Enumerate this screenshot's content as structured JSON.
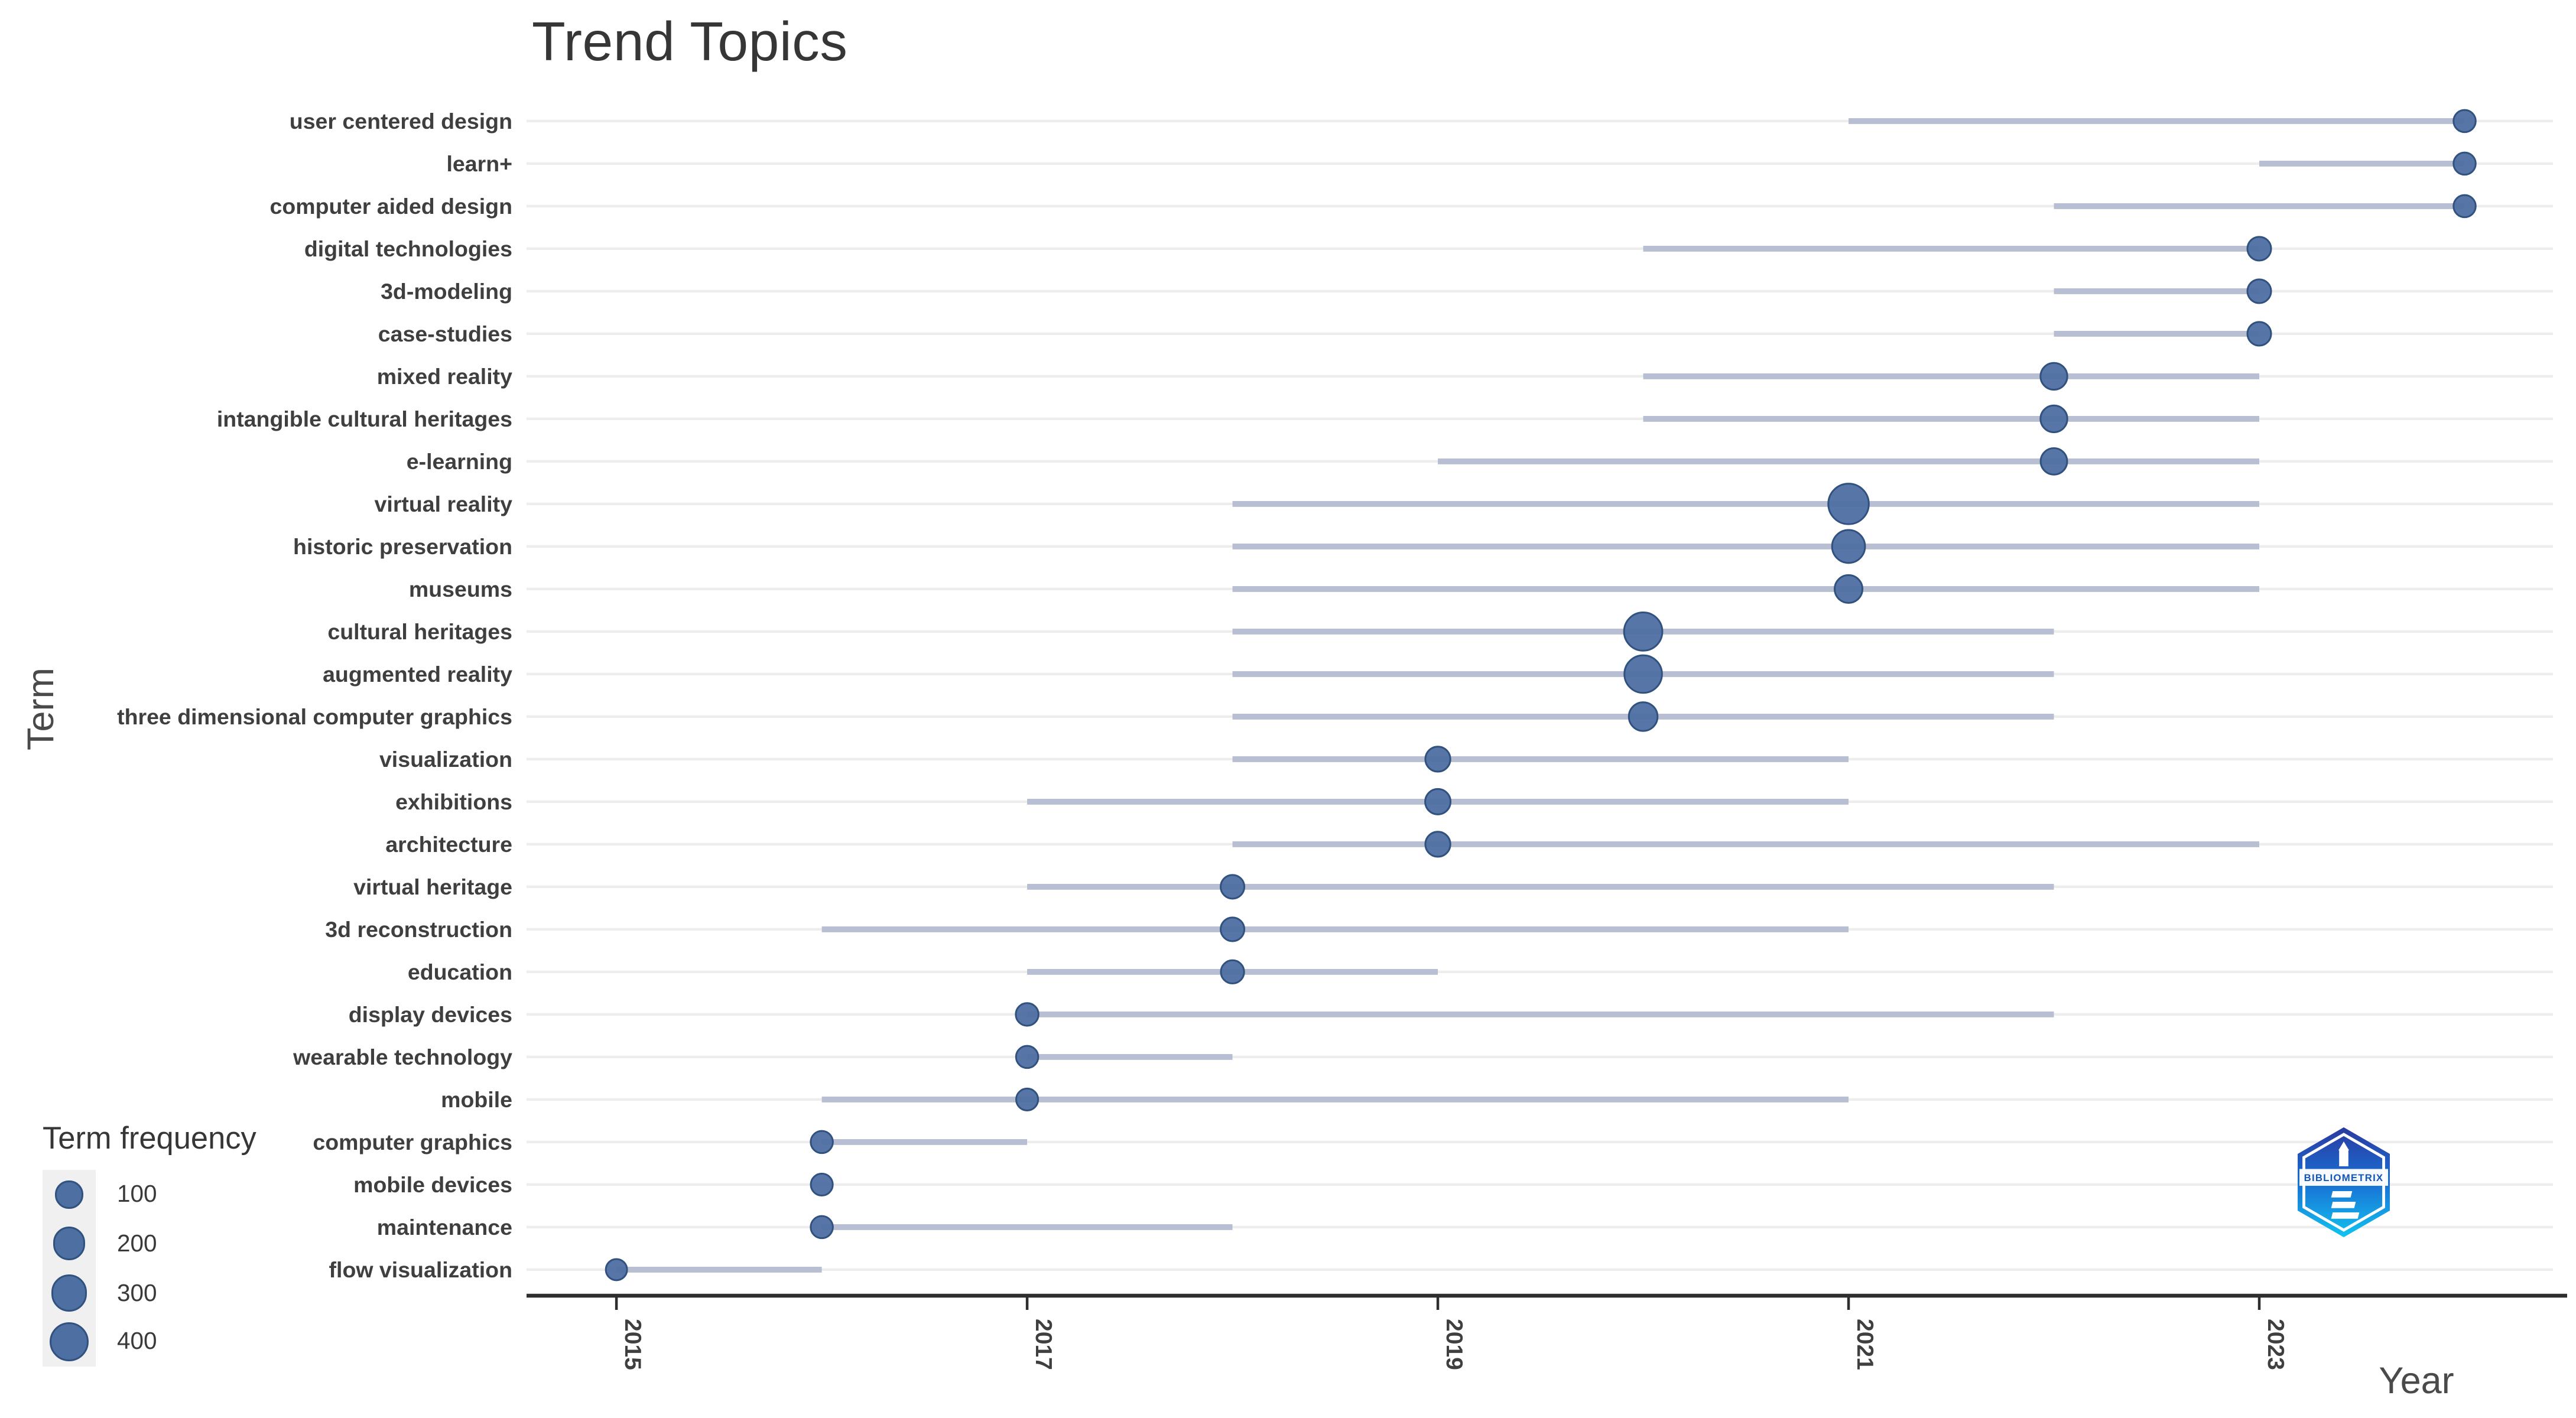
{
  "page": {
    "background": "#ffffff"
  },
  "chart": {
    "title": "Trend Topics",
    "x_axis": {
      "label": "Year",
      "ticks": [
        2015,
        2017,
        2019,
        2021,
        2023
      ]
    },
    "y_axis": {
      "label": "Term"
    },
    "legend": {
      "title": "Term frequency",
      "sizes": [
        100,
        200,
        300,
        400
      ]
    },
    "colors": {
      "dot_fill": "#4e6fa2",
      "dot_stroke": "#31517e",
      "line": "#b9bfd2",
      "grid": "#ededed",
      "axis": "#2e2e2e",
      "label_text": "#3f3f3f",
      "title_text": "#363636"
    }
  },
  "chart_data": {
    "type": "scatter",
    "subtype": "bubble-timeline",
    "title": "Trend Topics",
    "xlabel": "Year",
    "ylabel": "Term",
    "xlim": [
      2014.5,
      2024.5
    ],
    "x_ticks": [
      2015,
      2017,
      2019,
      2021,
      2023
    ],
    "grid": "horizontal-only",
    "legend_position": "bottom-left",
    "size_legend": {
      "title": "Term frequency",
      "values": [
        100,
        200,
        300,
        400
      ]
    },
    "rows": [
      {
        "term": "user centered design",
        "freq": 30,
        "year_q1": 2021,
        "year_med": 2024,
        "year_q3": 2024
      },
      {
        "term": "learn+",
        "freq": 30,
        "year_q1": 2023,
        "year_med": 2024,
        "year_q3": 2024
      },
      {
        "term": "computer aided design",
        "freq": 30,
        "year_q1": 2022,
        "year_med": 2024,
        "year_q3": 2024
      },
      {
        "term": "digital technologies",
        "freq": 45,
        "year_q1": 2020,
        "year_med": 2023,
        "year_q3": 2023
      },
      {
        "term": "3d-modeling",
        "freq": 45,
        "year_q1": 2022,
        "year_med": 2023,
        "year_q3": 2023
      },
      {
        "term": "case-studies",
        "freq": 45,
        "year_q1": 2022,
        "year_med": 2023,
        "year_q3": 2023
      },
      {
        "term": "mixed reality",
        "freq": 85,
        "year_q1": 2020,
        "year_med": 2022,
        "year_q3": 2023
      },
      {
        "term": "intangible cultural heritages",
        "freq": 85,
        "year_q1": 2020,
        "year_med": 2022,
        "year_q3": 2023
      },
      {
        "term": "e-learning",
        "freq": 80,
        "year_q1": 2019,
        "year_med": 2022,
        "year_q3": 2023
      },
      {
        "term": "virtual reality",
        "freq": 410,
        "year_q1": 2018,
        "year_med": 2021,
        "year_q3": 2023
      },
      {
        "term": "historic preservation",
        "freq": 200,
        "year_q1": 2018,
        "year_med": 2021,
        "year_q3": 2023
      },
      {
        "term": "museums",
        "freq": 100,
        "year_q1": 2018,
        "year_med": 2021,
        "year_q3": 2023
      },
      {
        "term": "cultural heritages",
        "freq": 340,
        "year_q1": 2018,
        "year_med": 2020,
        "year_q3": 2022
      },
      {
        "term": "augmented reality",
        "freq": 320,
        "year_q1": 2018,
        "year_med": 2020,
        "year_q3": 2022
      },
      {
        "term": "three dimensional computer graphics",
        "freq": 115,
        "year_q1": 2018,
        "year_med": 2020,
        "year_q3": 2022
      },
      {
        "term": "visualization",
        "freq": 60,
        "year_q1": 2018,
        "year_med": 2019,
        "year_q3": 2021
      },
      {
        "term": "exhibitions",
        "freq": 65,
        "year_q1": 2017,
        "year_med": 2019,
        "year_q3": 2021
      },
      {
        "term": "architecture",
        "freq": 60,
        "year_q1": 2018,
        "year_med": 2019,
        "year_q3": 2023
      },
      {
        "term": "virtual heritage",
        "freq": 45,
        "year_q1": 2017,
        "year_med": 2018,
        "year_q3": 2022
      },
      {
        "term": "3d reconstruction",
        "freq": 45,
        "year_q1": 2016,
        "year_med": 2018,
        "year_q3": 2021
      },
      {
        "term": "education",
        "freq": 40,
        "year_q1": 2017,
        "year_med": 2018,
        "year_q3": 2019
      },
      {
        "term": "display devices",
        "freq": 35,
        "year_q1": 2017,
        "year_med": 2017,
        "year_q3": 2022
      },
      {
        "term": "wearable technology",
        "freq": 30,
        "year_q1": 2017,
        "year_med": 2017,
        "year_q3": 2018
      },
      {
        "term": "mobile",
        "freq": 28,
        "year_q1": 2016,
        "year_med": 2017,
        "year_q3": 2021
      },
      {
        "term": "computer graphics",
        "freq": 30,
        "year_q1": 2016,
        "year_med": 2016,
        "year_q3": 2017
      },
      {
        "term": "mobile devices",
        "freq": 28,
        "year_q1": 2016,
        "year_med": 2016,
        "year_q3": 2016
      },
      {
        "term": "maintenance",
        "freq": 30,
        "year_q1": 2016,
        "year_med": 2016,
        "year_q3": 2018
      },
      {
        "term": "flow visualization",
        "freq": 22,
        "year_q1": 2015,
        "year_med": 2015,
        "year_q3": 2016
      }
    ]
  },
  "logo": {
    "text": "BIBLIOMETRIX"
  }
}
